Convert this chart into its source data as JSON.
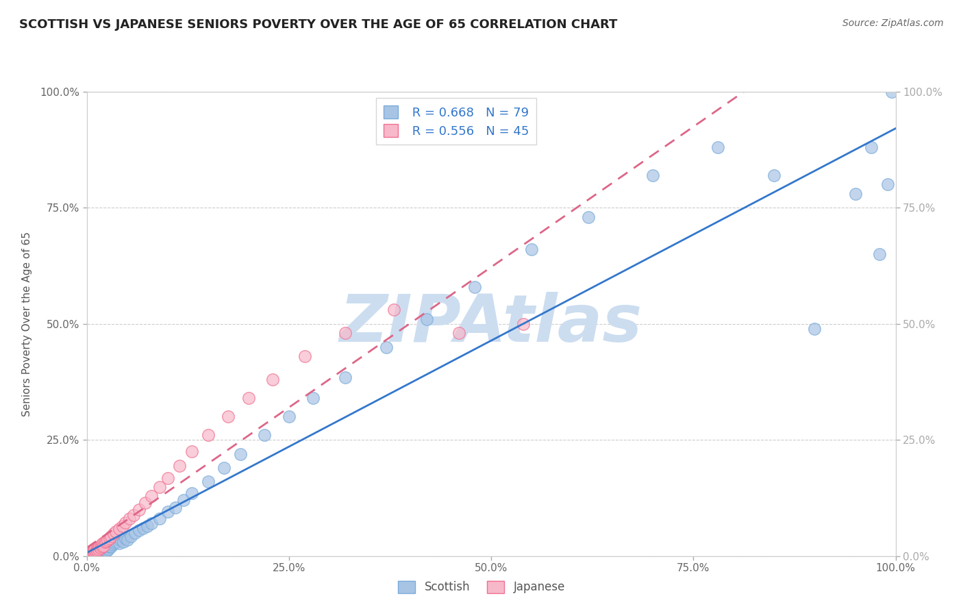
{
  "title": "SCOTTISH VS JAPANESE SENIORS POVERTY OVER THE AGE OF 65 CORRELATION CHART",
  "source": "Source: ZipAtlas.com",
  "ylabel": "Seniors Poverty Over the Age of 65",
  "xlim": [
    0,
    1
  ],
  "ylim": [
    0,
    1
  ],
  "xticks": [
    0.0,
    0.25,
    0.5,
    0.75,
    1.0
  ],
  "yticks": [
    0.0,
    0.25,
    0.5,
    0.75,
    1.0
  ],
  "xticklabels_bottom": [
    "0.0%",
    "25.0%",
    "50.0%",
    "75.0%",
    "100.0%"
  ],
  "yticklabels_left": [
    "0.0%",
    "25.0%",
    "50.0%",
    "75.0%",
    "100.0%"
  ],
  "yticklabels_right": [
    "0.0%",
    "25.0%",
    "50.0%",
    "75.0%",
    "100.0%"
  ],
  "scottish_R": 0.668,
  "scottish_N": 79,
  "japanese_R": 0.556,
  "japanese_N": 45,
  "scottish_dot_color": "#a8c4e5",
  "scottish_edge_color": "#7aabda",
  "japanese_dot_color": "#f7b8ca",
  "japanese_edge_color": "#f07090",
  "scottish_line_color": "#3377cc",
  "japanese_line_color": "#dd6688",
  "japanese_line_style": "--",
  "watermark": "ZIPAtlas",
  "watermark_color": "#ccddf0",
  "background_color": "#ffffff",
  "grid_color": "#cccccc",
  "title_fontsize": 13,
  "axis_label_fontsize": 11,
  "tick_fontsize": 11,
  "right_tick_color": "#4a90d9",
  "left_tick_color": "#666666",
  "legend_text_color": "#3377cc",
  "scottish_x": [
    0.005,
    0.007,
    0.008,
    0.008,
    0.009,
    0.01,
    0.01,
    0.011,
    0.011,
    0.012,
    0.012,
    0.013,
    0.013,
    0.014,
    0.014,
    0.015,
    0.015,
    0.016,
    0.016,
    0.016,
    0.017,
    0.017,
    0.018,
    0.018,
    0.019,
    0.019,
    0.02,
    0.02,
    0.021,
    0.021,
    0.022,
    0.022,
    0.023,
    0.024,
    0.025,
    0.026,
    0.027,
    0.028,
    0.03,
    0.032,
    0.034,
    0.036,
    0.04,
    0.042,
    0.045,
    0.048,
    0.05,
    0.055,
    0.06,
    0.065,
    0.07,
    0.075,
    0.08,
    0.09,
    0.1,
    0.11,
    0.12,
    0.13,
    0.15,
    0.17,
    0.19,
    0.22,
    0.25,
    0.28,
    0.32,
    0.37,
    0.42,
    0.48,
    0.55,
    0.62,
    0.7,
    0.78,
    0.85,
    0.9,
    0.95,
    0.97,
    0.98,
    0.99,
    0.995
  ],
  "scottish_y": [
    0.005,
    0.005,
    0.005,
    0.008,
    0.005,
    0.005,
    0.008,
    0.005,
    0.01,
    0.005,
    0.008,
    0.005,
    0.01,
    0.005,
    0.012,
    0.005,
    0.01,
    0.005,
    0.01,
    0.015,
    0.005,
    0.01,
    0.005,
    0.012,
    0.008,
    0.015,
    0.005,
    0.012,
    0.005,
    0.015,
    0.008,
    0.015,
    0.01,
    0.018,
    0.012,
    0.02,
    0.015,
    0.02,
    0.02,
    0.025,
    0.028,
    0.03,
    0.028,
    0.035,
    0.03,
    0.038,
    0.035,
    0.042,
    0.05,
    0.055,
    0.06,
    0.065,
    0.07,
    0.08,
    0.095,
    0.105,
    0.12,
    0.135,
    0.16,
    0.19,
    0.22,
    0.26,
    0.3,
    0.34,
    0.385,
    0.45,
    0.51,
    0.58,
    0.66,
    0.73,
    0.82,
    0.88,
    0.82,
    0.49,
    0.78,
    0.88,
    0.65,
    0.8,
    1.0
  ],
  "japanese_x": [
    0.005,
    0.007,
    0.008,
    0.009,
    0.01,
    0.01,
    0.011,
    0.012,
    0.013,
    0.014,
    0.015,
    0.016,
    0.017,
    0.018,
    0.019,
    0.02,
    0.021,
    0.022,
    0.024,
    0.026,
    0.028,
    0.03,
    0.033,
    0.036,
    0.04,
    0.044,
    0.048,
    0.053,
    0.058,
    0.065,
    0.072,
    0.08,
    0.09,
    0.1,
    0.115,
    0.13,
    0.15,
    0.175,
    0.2,
    0.23,
    0.27,
    0.32,
    0.38,
    0.46,
    0.54
  ],
  "japanese_y": [
    0.005,
    0.008,
    0.01,
    0.012,
    0.008,
    0.015,
    0.01,
    0.015,
    0.012,
    0.018,
    0.015,
    0.02,
    0.018,
    0.025,
    0.02,
    0.028,
    0.022,
    0.03,
    0.032,
    0.035,
    0.038,
    0.042,
    0.048,
    0.052,
    0.058,
    0.065,
    0.072,
    0.08,
    0.088,
    0.1,
    0.115,
    0.13,
    0.148,
    0.168,
    0.195,
    0.225,
    0.26,
    0.3,
    0.34,
    0.38,
    0.43,
    0.48,
    0.53,
    0.48,
    0.5
  ]
}
